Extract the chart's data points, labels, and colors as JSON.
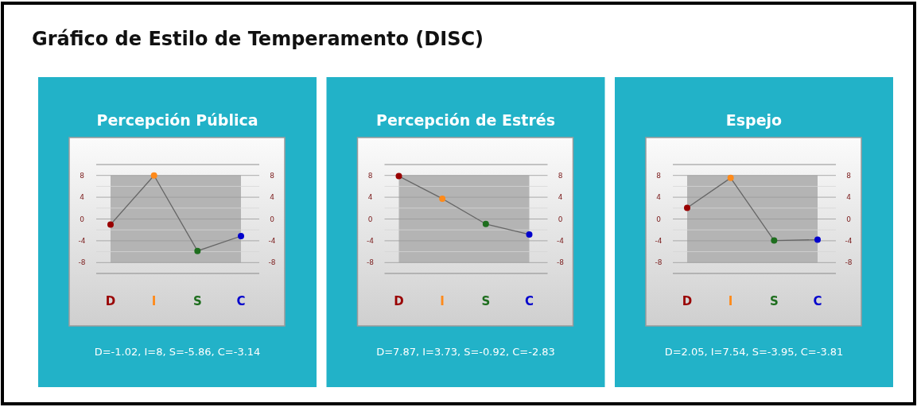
{
  "chart_data": [
    {
      "type": "line",
      "subtitle": "Gráfico de Estilo de Temperamento (DISC)",
      "title": "Percepción Pública",
      "categories": [
        "D",
        "I",
        "S",
        "C"
      ],
      "series": [
        {
          "color": "#666666",
          "colors": [
            "#990000",
            "#ff8a1a",
            "#1e6e1e",
            "#0000cc"
          ],
          "values": [
            -1.02,
            8,
            -5.86,
            -3.14
          ]
        }
      ],
      "ylim": [
        -10,
        10
      ],
      "yticks": [
        {
          "value": -10,
          "label": null
        },
        -8,
        {
          "value": -6,
          "label": null
        },
        -4,
        {
          "value": -2,
          "label": null
        },
        0,
        {
          "value": 2,
          "label": null
        },
        4,
        {
          "value": 6,
          "label": null
        },
        8,
        {
          "value": 10,
          "label": null
        }
      ],
      "y2lim": [
        -10,
        10
      ],
      "y2ticks": [
        -8,
        -4,
        0,
        4,
        8
      ],
      "grid": "y",
      "marker": "circle",
      "bands": [
        {
          "axis": "y",
          "from": -8,
          "to": 8,
          "color": "#b4b4b4"
        }
      ],
      "annotations": [
        "D=-1.02, I=8, S=-5.86, C=-3.14"
      ]
    },
    {
      "type": "line",
      "title": "Percepción de Estrés",
      "categories": [
        "D",
        "I",
        "S",
        "C"
      ],
      "series": [
        {
          "color": "#666666",
          "colors": [
            "#990000",
            "#ff8a1a",
            "#1e6e1e",
            "#0000cc"
          ],
          "values": [
            7.87,
            3.73,
            -0.92,
            -2.83
          ]
        }
      ],
      "ylim": [
        -10,
        10
      ],
      "yticks": [
        {
          "value": -10,
          "label": null
        },
        -8,
        {
          "value": -6,
          "label": null
        },
        -4,
        {
          "value": -2,
          "label": null
        },
        0,
        {
          "value": 2,
          "label": null
        },
        4,
        {
          "value": 6,
          "label": null
        },
        8,
        {
          "value": 10,
          "label": null
        }
      ],
      "y2lim": [
        -10,
        10
      ],
      "y2ticks": [
        -8,
        -4,
        0,
        4,
        8
      ],
      "grid": "y",
      "marker": "circle",
      "bands": [
        {
          "axis": "y",
          "from": -8,
          "to": 8,
          "color": "#b4b4b4"
        }
      ],
      "annotations": [
        "D=7.87, I=3.73, S=-0.92, C=-2.83"
      ]
    },
    {
      "type": "line",
      "title": "Espejo",
      "categories": [
        "D",
        "I",
        "S",
        "C"
      ],
      "series": [
        {
          "color": "#666666",
          "colors": [
            "#990000",
            "#ff8a1a",
            "#1e6e1e",
            "#0000cc"
          ],
          "values": [
            2.05,
            7.54,
            -3.95,
            -3.81
          ]
        }
      ],
      "ylim": [
        -10,
        10
      ],
      "yticks": [
        {
          "value": -10,
          "label": null
        },
        -8,
        {
          "value": -6,
          "label": null
        },
        -4,
        {
          "value": -2,
          "label": null
        },
        0,
        {
          "value": 2,
          "label": null
        },
        4,
        {
          "value": 6,
          "label": null
        },
        8,
        {
          "value": 10,
          "label": null
        }
      ],
      "y2lim": [
        -10,
        10
      ],
      "y2ticks": [
        -8,
        -4,
        0,
        4,
        8
      ],
      "grid": "y",
      "marker": "circle",
      "bands": [
        {
          "axis": "y",
          "from": -8,
          "to": 8,
          "color": "#b4b4b4"
        }
      ],
      "annotations": [
        "D=2.05, I=7.54, S=-3.95, C=-3.81"
      ]
    }
  ]
}
